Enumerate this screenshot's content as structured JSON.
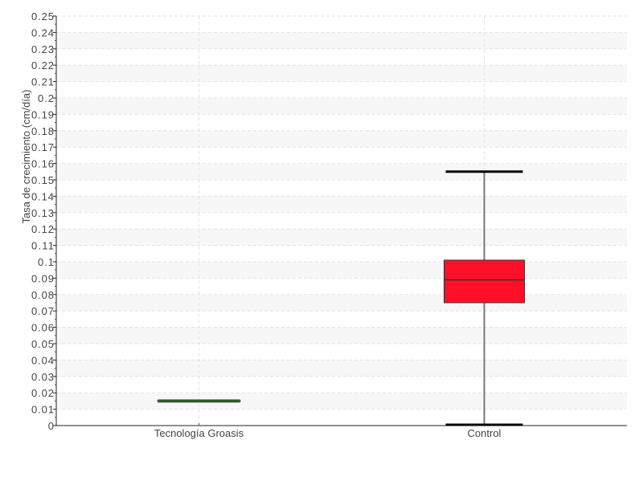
{
  "chart_data": {
    "type": "box",
    "title": "",
    "xlabel": "",
    "ylabel": "Tasa de crecimiento (cm/día)",
    "ylim": [
      0,
      0.25
    ],
    "ytick_step": 0.01,
    "grid": true,
    "categories": [
      "Tecnología Groasis",
      "Control"
    ],
    "boxes": [
      {
        "category": "Tecnología Groasis",
        "min": 0.015,
        "q1": 0.015,
        "median": 0.015,
        "q3": 0.015,
        "max": 0.015,
        "color": "#1a5c1a"
      },
      {
        "category": "Control",
        "min": 0.0,
        "q1": 0.075,
        "median": 0.089,
        "q3": 0.101,
        "max": 0.155,
        "color": "#ff1028"
      }
    ]
  }
}
